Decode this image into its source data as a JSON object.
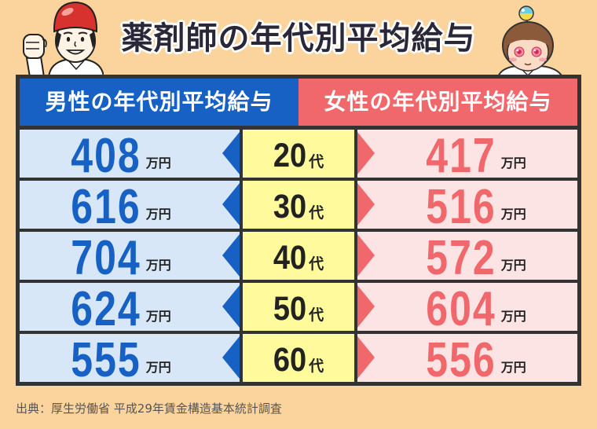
{
  "chart_data": {
    "type": "table",
    "title": "薬剤師の年代別平均給与",
    "categories": [
      "20代",
      "30代",
      "40代",
      "50代",
      "60代"
    ],
    "unit": "万円",
    "series": [
      {
        "name": "男性の年代別平均給与",
        "values": [
          408,
          616,
          704,
          624,
          555
        ]
      },
      {
        "name": "女性の年代別平均給与",
        "values": [
          417,
          516,
          572,
          604,
          556
        ]
      }
    ]
  },
  "source": "出典：厚生労働省 平成29年賃金構造基本統計調査",
  "colors": {
    "background": "#FAD49C",
    "male": "#1761C4",
    "male_cell": "#D8E7F7",
    "female": "#F0686B",
    "female_cell": "#FDE4E4",
    "age_cell": "#FFFB9C",
    "frame": "#333333",
    "ink": "#222222"
  },
  "icons": {
    "left_illustration": "pharmacist-man-icon",
    "right_illustration": "pharmacist-woman-icon",
    "male_pointer": "triangle-left-icon",
    "female_pointer": "triangle-right-icon"
  }
}
